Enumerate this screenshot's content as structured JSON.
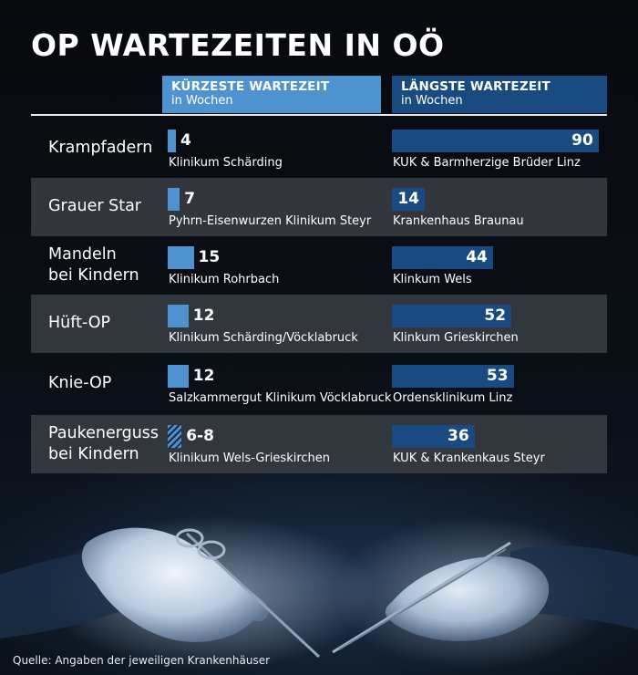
{
  "title": "OP WARTEZEITEN IN OÖ",
  "columns": {
    "short": {
      "title": "KÜRZESTE WARTEZEIT",
      "subtitle": "in Wochen"
    },
    "long": {
      "title": "LÄNGSTE WARTEZEIT",
      "subtitle": "in Wochen"
    }
  },
  "source": "Quelle:  Angaben der jeweiligen Krankenhäuser",
  "colors": {
    "short_bar": "#4e93d0",
    "long_bar": "#1a4b80",
    "alt_row": "#3a3e44",
    "background": "#0b1018"
  },
  "chart_data": {
    "type": "bar",
    "unit": "Wochen",
    "categories": [
      [
        "Krampfadern"
      ],
      [
        "Grauer Star"
      ],
      [
        "Mandeln",
        "bei Kindern"
      ],
      [
        "Hüft-OP"
      ],
      [
        "Knie-OP"
      ],
      [
        "Paukenerguss",
        "bei Kindern"
      ]
    ],
    "series": [
      {
        "name": "KÜRZESTE WARTEZEIT",
        "values": [
          4,
          7,
          15,
          12,
          12,
          8
        ],
        "labels": [
          "4",
          "7",
          "15",
          "12",
          "12",
          "6-8"
        ],
        "locations": [
          "Klinikum Schärding",
          "Pyhrn-Eisenwurzen Klinikum Steyr",
          "Klinikum Rohrbach",
          "Klinikum Schärding/Vöcklabruck",
          "Salzkammergut Klinikum Vöcklabruck",
          "Klinikum Wels-Grieskirchen"
        ],
        "range_low": [
          null,
          null,
          null,
          null,
          null,
          6
        ]
      },
      {
        "name": "LÄNGSTE WARTEZEIT",
        "values": [
          90,
          14,
          44,
          52,
          53,
          36
        ],
        "labels": [
          "90",
          "14",
          "44",
          "52",
          "53",
          "36"
        ],
        "locations": [
          "KUK & Barmherzige Brüder Linz",
          "Krankenhaus Braunau",
          "Klinkum Wels",
          "Klinkum Grieskirchen",
          "Ordensklinikum Linz",
          "KUK & Krankenkaus Steyr"
        ]
      }
    ],
    "xlim": [
      0,
      90
    ]
  }
}
